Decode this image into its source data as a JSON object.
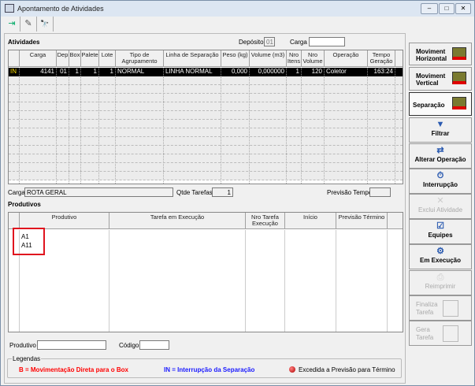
{
  "window": {
    "title": "Apontamento de Atividades",
    "controls": [
      "–",
      "□",
      "✕"
    ]
  },
  "toolbar": [
    {
      "icon": "exit-icon",
      "glyph": "⇥"
    },
    {
      "icon": "edit-icon",
      "glyph": "✎"
    },
    {
      "icon": "binoculars-icon",
      "glyph": "🔭"
    }
  ],
  "atividades": {
    "label": "Atividades",
    "deposito_label": "Depósito",
    "deposito_value": "01",
    "carga_label": "Carga",
    "carga_value": "",
    "columns": [
      "",
      "Carga",
      "Dep",
      "Box",
      "Palete",
      "Lote",
      "Tipo de Agrupamento",
      "Linha de Separação",
      "Peso (kg)",
      "Volume (m3)",
      "Nro Itens",
      "Nro Volume",
      "Operação",
      "Tempo Geração"
    ],
    "rows": [
      [
        "IN",
        "4141",
        "01",
        "1",
        "1",
        "1",
        "NORMAL",
        "LINHA NORMAL",
        "0,000",
        "0,000000",
        "1",
        "120",
        "Coletor",
        "163:24"
      ]
    ]
  },
  "info": {
    "carga_label": "Carga",
    "carga_value": "ROTA GERAL",
    "qtde_label": "Qtde Tarefas",
    "qtde_value": "1",
    "previsao_label": "Previsão Tempo",
    "previsao_value": ""
  },
  "produtivos": {
    "label": "Produtivos",
    "columns": [
      "",
      "Produtivo",
      "Tarefa em Execução",
      "Nro Tarefa Execução",
      "Início",
      "Previsão Término",
      ""
    ],
    "rows": [
      "A1",
      "A11"
    ]
  },
  "filters": {
    "produtivo_label": "Produtivo",
    "produtivo_value": "",
    "codigo_label": "Código",
    "codigo_value": ""
  },
  "legend": {
    "title": "Legendas",
    "b": "B = Movimentação Direta para o Box",
    "in": "IN = Interrupção da Separação",
    "excedida": "Excedida a Previsão para Término",
    "colors": {
      "b": "#ff0000",
      "in": "#1a1aff",
      "excedida": "#cc0000"
    }
  },
  "buttons": [
    {
      "label": "Moviment Horizontal",
      "enabled": true
    },
    {
      "label": "Moviment Vertical",
      "enabled": true
    },
    {
      "label": "Separação",
      "enabled": true
    },
    {
      "label": "Filtrar",
      "enabled": true
    },
    {
      "label": "Alterar Operação",
      "enabled": true
    },
    {
      "label": "Interrupção",
      "enabled": true
    },
    {
      "label": "Exclui Atividade",
      "enabled": false
    },
    {
      "label": "Equipes",
      "enabled": true
    },
    {
      "label": "Em Execução",
      "enabled": true
    },
    {
      "label": "Reimprimir",
      "enabled": false
    },
    {
      "label": "Finaliza Tarefa",
      "enabled": false
    },
    {
      "label": "Gera Tarefa",
      "enabled": false
    }
  ]
}
